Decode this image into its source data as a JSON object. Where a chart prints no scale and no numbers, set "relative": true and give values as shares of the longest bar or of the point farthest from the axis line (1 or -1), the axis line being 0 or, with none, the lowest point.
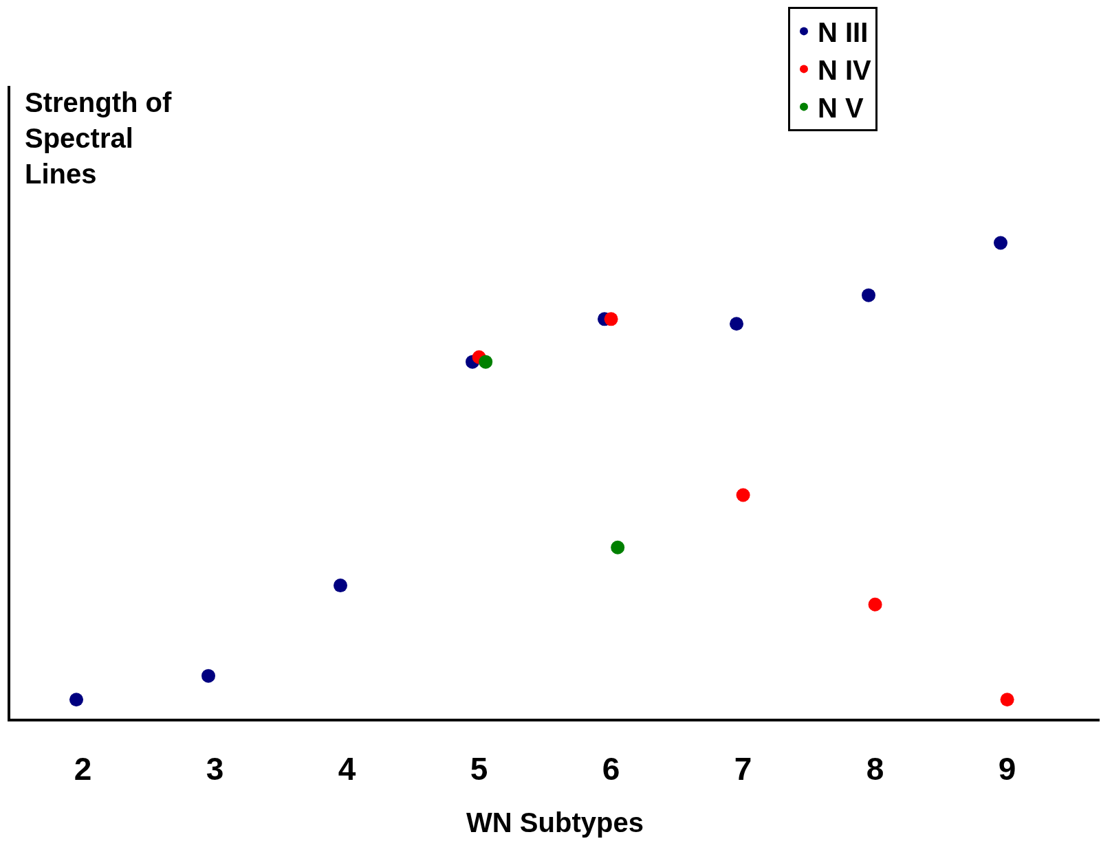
{
  "chart_data": {
    "type": "scatter",
    "xlabel": "WN Subtypes",
    "ylabel": "Strength of Spectral Lines",
    "relative": true,
    "categories": [
      "2",
      "3",
      "4",
      "5",
      "6",
      "7",
      "8",
      "9"
    ],
    "series": [
      {
        "name": "N III",
        "color": "#000080",
        "values": [
          0.04,
          0.09,
          0.28,
          0.75,
          0.84,
          0.83,
          0.89,
          1.0
        ]
      },
      {
        "name": "N IV",
        "color": "#ff0000",
        "values": [
          null,
          null,
          null,
          0.76,
          0.84,
          0.47,
          0.24,
          0.04
        ]
      },
      {
        "name": "N V",
        "color": "#008000",
        "values": [
          null,
          null,
          null,
          0.75,
          0.36,
          null,
          null,
          null
        ]
      }
    ],
    "marker": "circle",
    "grid": false,
    "legend": "top right"
  }
}
